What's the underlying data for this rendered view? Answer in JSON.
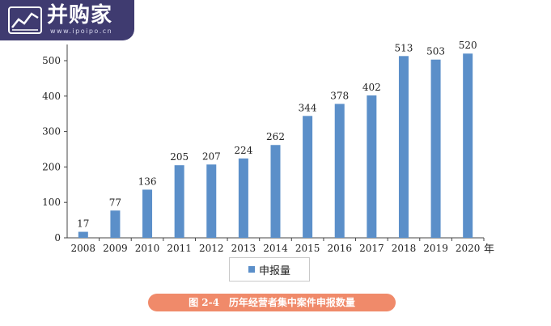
{
  "logo": {
    "text": "并购家",
    "url": "www.ipoipo.cn"
  },
  "chart_data": {
    "type": "bar",
    "categories": [
      "2008",
      "2009",
      "2010",
      "2011",
      "2012",
      "2013",
      "2014",
      "2015",
      "2016",
      "2017",
      "2018",
      "2019",
      "2020"
    ],
    "values": [
      17,
      77,
      136,
      205,
      207,
      224,
      262,
      344,
      378,
      402,
      513,
      503,
      520
    ],
    "series": [
      {
        "name": "申报量",
        "values": [
          17,
          77,
          136,
          205,
          207,
          224,
          262,
          344,
          378,
          402,
          513,
          503,
          520
        ]
      }
    ],
    "yticks": [
      0,
      100,
      200,
      300,
      400,
      500
    ],
    "ylim": [
      0,
      550
    ],
    "xlabel": "年",
    "ylabel": "",
    "grid": false,
    "legend_position": "bottom-center",
    "bar_color": "#5b8fc9",
    "caption": "图 2-4　历年经营者集中案件申报数量"
  },
  "colors": {
    "bar": "#5b8fc9",
    "logo_bg": "#3f3b70",
    "caption_bg": "#f08a6a"
  }
}
